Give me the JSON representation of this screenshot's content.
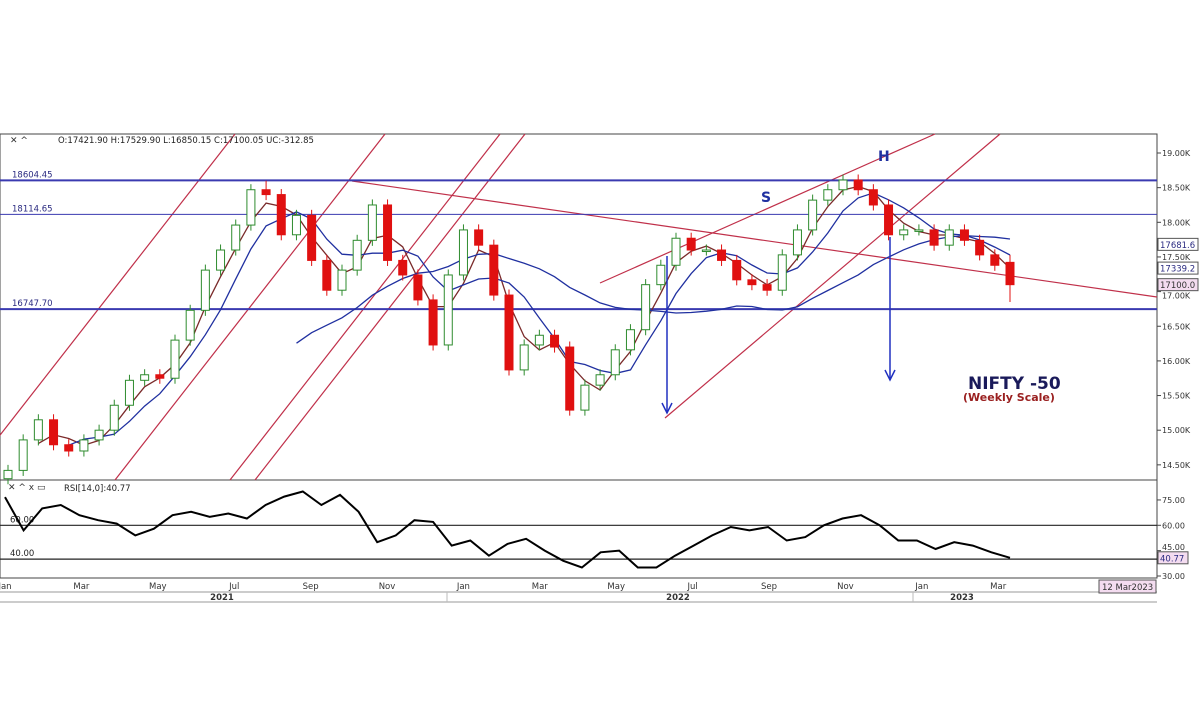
{
  "header": {
    "ohlc_readout": "O:17421.90  H:17529.90  L:16850.15  C:17100.05  UC:-312.85"
  },
  "rsi_header": "RSI[14,0]:40.77",
  "colors": {
    "up": "#2e8b2e",
    "down": "#e01010",
    "level": "#3a3ab0",
    "trend": "#c0304a",
    "ma_short": "#7a2a2a",
    "ma_mid": "#2030a0",
    "ma_long": "#2030a0",
    "title": "#1a1a5a",
    "subtitle": "#9a2020",
    "tag_bg": "#f4dcf0"
  },
  "annotations": {
    "s": "S",
    "h": "H",
    "title": "NIFTY -50",
    "subtitle": "(Weekly Scale)"
  },
  "date_box": "12 Mar2023",
  "chart_data": {
    "type": "candlestick",
    "title": "NIFTY -50",
    "subtitle": "(Weekly Scale)",
    "ylim": [
      14300,
      19250
    ],
    "y_ticks": [
      "19.00K",
      "18.50K",
      "18.00K",
      "17.50K",
      "17.00K",
      "16.50K",
      "16.00K",
      "15.50K",
      "15.00K",
      "14.50K"
    ],
    "y_tick_values": [
      19000,
      18500,
      18000,
      17500,
      17000,
      16500,
      16000,
      15500,
      15000,
      14500
    ],
    "x_month_labels": [
      "Jan",
      "Mar",
      "May",
      "Jul",
      "Sep",
      "Nov",
      "Jan",
      "Mar",
      "May",
      "Jul",
      "Sep",
      "Nov",
      "Jan",
      "Mar"
    ],
    "x_year_labels": [
      "2021",
      "2022",
      "2023"
    ],
    "levels": [
      {
        "label": "18604.45",
        "value": 18604.45
      },
      {
        "label": "18114.65",
        "value": 18114.65
      },
      {
        "label": "16747.70",
        "value": 16747.7
      }
    ],
    "price_tags": [
      {
        "label": "17681.6",
        "value": 17681.6
      },
      {
        "label": "17339.2",
        "value": 17339.2
      },
      {
        "label": "17100.0",
        "value": 17100.0
      }
    ],
    "ohlc": [
      [
        14300,
        14500,
        14220,
        14420
      ],
      [
        14420,
        14940,
        14340,
        14860
      ],
      [
        14860,
        15230,
        14780,
        15150
      ],
      [
        15150,
        15230,
        14710,
        14790
      ],
      [
        14790,
        14870,
        14620,
        14700
      ],
      [
        14700,
        14940,
        14620,
        14860
      ],
      [
        14860,
        15080,
        14780,
        15000
      ],
      [
        15000,
        15440,
        14920,
        15360
      ],
      [
        15360,
        15800,
        15280,
        15720
      ],
      [
        15720,
        15880,
        15640,
        15800
      ],
      [
        15800,
        15880,
        15670,
        15750
      ],
      [
        15750,
        16380,
        15670,
        16300
      ],
      [
        16300,
        16810,
        16220,
        16730
      ],
      [
        16730,
        17390,
        16650,
        17310
      ],
      [
        17310,
        17680,
        17230,
        17600
      ],
      [
        17600,
        18040,
        17520,
        17960
      ],
      [
        17960,
        18550,
        17880,
        18470
      ],
      [
        18470,
        18600,
        18320,
        18400
      ],
      [
        18400,
        18480,
        17740,
        17820
      ],
      [
        17820,
        18180,
        17740,
        18100
      ],
      [
        18100,
        18180,
        17370,
        17450
      ],
      [
        17450,
        17530,
        16940,
        17020
      ],
      [
        17020,
        17390,
        16940,
        17310
      ],
      [
        17310,
        17820,
        17230,
        17740
      ],
      [
        17740,
        18330,
        17660,
        18250
      ],
      [
        18250,
        18330,
        17370,
        17450
      ],
      [
        17450,
        17530,
        17160,
        17240
      ],
      [
        17240,
        17320,
        16800,
        16880
      ],
      [
        16880,
        16960,
        16150,
        16230
      ],
      [
        16230,
        17320,
        16150,
        17240
      ],
      [
        17240,
        17970,
        17160,
        17890
      ],
      [
        17890,
        17970,
        17590,
        17670
      ],
      [
        17670,
        17750,
        16870,
        16950
      ],
      [
        16950,
        17030,
        15790,
        15870
      ],
      [
        15870,
        16310,
        15790,
        16230
      ],
      [
        16230,
        16450,
        16150,
        16370
      ],
      [
        16370,
        16450,
        16120,
        16200
      ],
      [
        16200,
        16280,
        15210,
        15290
      ],
      [
        15290,
        15730,
        15210,
        15650
      ],
      [
        15650,
        15880,
        15570,
        15800
      ],
      [
        15800,
        16240,
        15720,
        16160
      ],
      [
        16160,
        16530,
        16080,
        16450
      ],
      [
        16450,
        17180,
        16370,
        17100
      ],
      [
        17100,
        17460,
        17020,
        17380
      ],
      [
        17380,
        17850,
        17300,
        17770
      ],
      [
        17770,
        17850,
        17520,
        17600
      ],
      [
        17600,
        17680,
        17520,
        17600
      ],
      [
        17600,
        17680,
        17370,
        17450
      ],
      [
        17450,
        17530,
        17090,
        17170
      ],
      [
        17170,
        17250,
        17020,
        17100
      ],
      [
        17100,
        17180,
        16940,
        17020
      ],
      [
        17020,
        17610,
        16940,
        17530
      ],
      [
        17530,
        17970,
        17450,
        17890
      ],
      [
        17890,
        18400,
        17810,
        18320
      ],
      [
        18320,
        18550,
        18240,
        18470
      ],
      [
        18470,
        18690,
        18390,
        18610
      ],
      [
        18610,
        18690,
        18390,
        18470
      ],
      [
        18470,
        18550,
        18170,
        18250
      ],
      [
        18250,
        18330,
        17740,
        17820
      ],
      [
        17820,
        17970,
        17740,
        17890
      ],
      [
        17890,
        17970,
        17810,
        17890
      ],
      [
        17890,
        17970,
        17590,
        17670
      ],
      [
        17670,
        17970,
        17590,
        17890
      ],
      [
        17890,
        17970,
        17660,
        17740
      ],
      [
        17740,
        17820,
        17450,
        17530
      ],
      [
        17530,
        17610,
        17300,
        17380
      ],
      [
        17421.9,
        17529.9,
        16850.15,
        17100.05
      ]
    ],
    "rsi": {
      "label": "RSI[14,0]:40.77",
      "ylim": [
        30,
        80
      ],
      "y_ticks": [
        "75.00",
        "60.00",
        "45.00",
        "30.00"
      ],
      "y_tick_values": [
        75,
        60,
        45,
        30
      ],
      "levels": [
        {
          "label": "60.00",
          "value": 60
        },
        {
          "label": "40.00",
          "value": 40
        }
      ],
      "last_tag": "40.77",
      "values": [
        76.7,
        57,
        70,
        72,
        66,
        63,
        61,
        54,
        58,
        66,
        68,
        65,
        67,
        64,
        72,
        77,
        80,
        72,
        78,
        68,
        50,
        54,
        63,
        62,
        48,
        51,
        42,
        49,
        52,
        45,
        39,
        35,
        44,
        45,
        35,
        35,
        42,
        48,
        54,
        59,
        57,
        59,
        51,
        53,
        60,
        64,
        66,
        60,
        51,
        51,
        46,
        50,
        48,
        44,
        40.77
      ]
    }
  }
}
